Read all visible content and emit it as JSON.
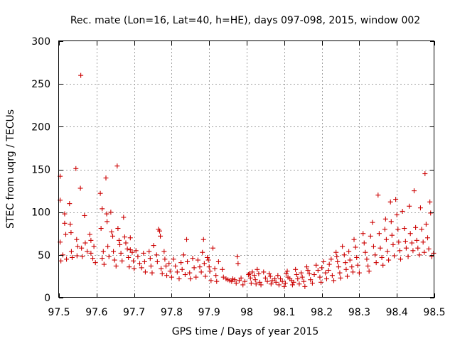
{
  "chart_data": {
    "type": "scatter",
    "title": "Rec. mate (Lon=16, Lat=40, h=HE), days 097-098, 2015, window 002",
    "xlabel": "GPS time / Days of year 2015",
    "ylabel": "STEC from uqrg / TECUs",
    "xlim": [
      97.5,
      98.5
    ],
    "ylim": [
      0,
      300
    ],
    "xticks": [
      97.5,
      97.6,
      97.7,
      97.8,
      97.9,
      98.0,
      98.1,
      98.2,
      98.3,
      98.4,
      98.5
    ],
    "xtick_labels": [
      "97.5",
      "97.6",
      "97.7",
      "97.8",
      "97.9",
      "98",
      "98.1",
      "98.2",
      "98.3",
      "98.4",
      "98.5"
    ],
    "yticks": [
      0,
      50,
      100,
      150,
      200,
      250,
      300
    ],
    "ytick_labels": [
      "0",
      "50",
      "100",
      "150",
      "200",
      "250",
      "300"
    ],
    "grid": true,
    "series": [
      {
        "name": "STEC",
        "color": "#cc0000",
        "marker": "plus",
        "points": [
          [
            97.503,
            142
          ],
          [
            97.503,
            114
          ],
          [
            97.503,
            65
          ],
          [
            97.505,
            43
          ],
          [
            97.51,
            50
          ],
          [
            97.515,
            98
          ],
          [
            97.515,
            87
          ],
          [
            97.518,
            74
          ],
          [
            97.52,
            45
          ],
          [
            97.528,
            110
          ],
          [
            97.53,
            86
          ],
          [
            97.532,
            76
          ],
          [
            97.533,
            54
          ],
          [
            97.535,
            47
          ],
          [
            97.545,
            151
          ],
          [
            97.547,
            68
          ],
          [
            97.55,
            60
          ],
          [
            97.548,
            49
          ],
          [
            97.558,
            260
          ],
          [
            97.557,
            128
          ],
          [
            97.56,
            58
          ],
          [
            97.562,
            48
          ],
          [
            97.568,
            96
          ],
          [
            97.57,
            64
          ],
          [
            97.575,
            54
          ],
          [
            97.582,
            74
          ],
          [
            97.585,
            67
          ],
          [
            97.585,
            52
          ],
          [
            97.59,
            46
          ],
          [
            97.593,
            60
          ],
          [
            97.597,
            41
          ],
          [
            97.61,
            122
          ],
          [
            97.615,
            104
          ],
          [
            97.612,
            81
          ],
          [
            97.618,
            54
          ],
          [
            97.615,
            46
          ],
          [
            97.62,
            39
          ],
          [
            97.625,
            140
          ],
          [
            97.627,
            98
          ],
          [
            97.628,
            89
          ],
          [
            97.63,
            60
          ],
          [
            97.633,
            48
          ],
          [
            97.638,
            100
          ],
          [
            97.64,
            77
          ],
          [
            97.643,
            72
          ],
          [
            97.645,
            54
          ],
          [
            97.648,
            44
          ],
          [
            97.652,
            37
          ],
          [
            97.655,
            154
          ],
          [
            97.657,
            81
          ],
          [
            97.66,
            67
          ],
          [
            97.662,
            62
          ],
          [
            97.665,
            52
          ],
          [
            97.668,
            43
          ],
          [
            97.672,
            94
          ],
          [
            97.675,
            71
          ],
          [
            97.678,
            64
          ],
          [
            97.682,
            57
          ],
          [
            97.685,
            47
          ],
          [
            97.687,
            36
          ],
          [
            97.69,
            70
          ],
          [
            97.69,
            56
          ],
          [
            97.695,
            53
          ],
          [
            97.698,
            43
          ],
          [
            97.7,
            34
          ],
          [
            97.705,
            55
          ],
          [
            97.71,
            48
          ],
          [
            97.715,
            40
          ],
          [
            97.72,
            35
          ],
          [
            97.725,
            52
          ],
          [
            97.728,
            42
          ],
          [
            97.73,
            30
          ],
          [
            97.74,
            54
          ],
          [
            97.743,
            46
          ],
          [
            97.745,
            37
          ],
          [
            97.748,
            29
          ],
          [
            97.752,
            61
          ],
          [
            97.76,
            50
          ],
          [
            97.762,
            42
          ],
          [
            97.765,
            80
          ],
          [
            97.768,
            78
          ],
          [
            97.77,
            72
          ],
          [
            97.772,
            34
          ],
          [
            97.775,
            28
          ],
          [
            97.78,
            54
          ],
          [
            97.782,
            45
          ],
          [
            97.785,
            37
          ],
          [
            97.787,
            26
          ],
          [
            97.793,
            40
          ],
          [
            97.796,
            31
          ],
          [
            97.8,
            24
          ],
          [
            97.805,
            45
          ],
          [
            97.81,
            37
          ],
          [
            97.815,
            30
          ],
          [
            97.82,
            22
          ],
          [
            97.825,
            41
          ],
          [
            97.828,
            33
          ],
          [
            97.832,
            50
          ],
          [
            97.836,
            27
          ],
          [
            97.84,
            68
          ],
          [
            97.842,
            42
          ],
          [
            97.848,
            29
          ],
          [
            97.85,
            22
          ],
          [
            97.856,
            46
          ],
          [
            97.86,
            35
          ],
          [
            97.865,
            24
          ],
          [
            97.87,
            44
          ],
          [
            97.875,
            36
          ],
          [
            97.879,
            30
          ],
          [
            97.882,
            53
          ],
          [
            97.885,
            68
          ],
          [
            97.887,
            40
          ],
          [
            97.89,
            25
          ],
          [
            97.895,
            47
          ],
          [
            97.898,
            44
          ],
          [
            97.9,
            36
          ],
          [
            97.902,
            31
          ],
          [
            97.905,
            20
          ],
          [
            97.91,
            58
          ],
          [
            97.915,
            34
          ],
          [
            97.918,
            26
          ],
          [
            97.92,
            19
          ],
          [
            97.925,
            42
          ],
          [
            97.935,
            33
          ],
          [
            97.938,
            24
          ],
          [
            97.945,
            22
          ],
          [
            97.95,
            21
          ],
          [
            97.955,
            20
          ],
          [
            97.96,
            19
          ],
          [
            97.963,
            22
          ],
          [
            97.968,
            21
          ],
          [
            97.972,
            17
          ],
          [
            97.975,
            48
          ],
          [
            97.977,
            40
          ],
          [
            97.98,
            20
          ],
          [
            97.985,
            23
          ],
          [
            97.99,
            15
          ],
          [
            97.995,
            19
          ],
          [
            98.005,
            27
          ],
          [
            98.007,
            28
          ],
          [
            98.01,
            23
          ],
          [
            98.012,
            17
          ],
          [
            98.015,
            30
          ],
          [
            98.02,
            26
          ],
          [
            98.023,
            21
          ],
          [
            98.025,
            16
          ],
          [
            98.028,
            33
          ],
          [
            98.032,
            28
          ],
          [
            98.035,
            18
          ],
          [
            98.038,
            15
          ],
          [
            98.045,
            30
          ],
          [
            98.05,
            23
          ],
          [
            98.055,
            19
          ],
          [
            98.06,
            28
          ],
          [
            98.063,
            25
          ],
          [
            98.065,
            16
          ],
          [
            98.068,
            20
          ],
          [
            98.075,
            22
          ],
          [
            98.078,
            18
          ],
          [
            98.083,
            26
          ],
          [
            98.086,
            15
          ],
          [
            98.09,
            22
          ],
          [
            98.095,
            19
          ],
          [
            98.1,
            13
          ],
          [
            98.103,
            17
          ],
          [
            98.105,
            28
          ],
          [
            98.108,
            31
          ],
          [
            98.11,
            24
          ],
          [
            98.115,
            22
          ],
          [
            98.12,
            20
          ],
          [
            98.122,
            15
          ],
          [
            98.125,
            18
          ],
          [
            98.13,
            33
          ],
          [
            98.133,
            27
          ],
          [
            98.136,
            22
          ],
          [
            98.14,
            16
          ],
          [
            98.145,
            29
          ],
          [
            98.148,
            24
          ],
          [
            98.152,
            19
          ],
          [
            98.155,
            13
          ],
          [
            98.16,
            36
          ],
          [
            98.163,
            32
          ],
          [
            98.167,
            28
          ],
          [
            98.17,
            21
          ],
          [
            98.175,
            17
          ],
          [
            98.18,
            27
          ],
          [
            98.185,
            38
          ],
          [
            98.19,
            32
          ],
          [
            98.195,
            24
          ],
          [
            98.198,
            18
          ],
          [
            98.2,
            35
          ],
          [
            98.205,
            42
          ],
          [
            98.21,
            29
          ],
          [
            98.213,
            22
          ],
          [
            98.218,
            32
          ],
          [
            98.22,
            39
          ],
          [
            98.225,
            45
          ],
          [
            98.228,
            26
          ],
          [
            98.232,
            20
          ],
          [
            98.238,
            53
          ],
          [
            98.24,
            48
          ],
          [
            98.242,
            42
          ],
          [
            98.245,
            36
          ],
          [
            98.248,
            29
          ],
          [
            98.25,
            23
          ],
          [
            98.255,
            60
          ],
          [
            98.26,
            50
          ],
          [
            98.263,
            41
          ],
          [
            98.265,
            33
          ],
          [
            98.268,
            25
          ],
          [
            98.272,
            54
          ],
          [
            98.275,
            44
          ],
          [
            98.28,
            36
          ],
          [
            98.283,
            30
          ],
          [
            98.286,
            68
          ],
          [
            98.29,
            59
          ],
          [
            98.293,
            47
          ],
          [
            98.296,
            38
          ],
          [
            98.3,
            29
          ],
          [
            98.31,
            75
          ],
          [
            98.313,
            64
          ],
          [
            98.316,
            53
          ],
          [
            98.32,
            45
          ],
          [
            98.323,
            37
          ],
          [
            98.326,
            31
          ],
          [
            98.33,
            72
          ],
          [
            98.335,
            88
          ],
          [
            98.338,
            60
          ],
          [
            98.342,
            50
          ],
          [
            98.345,
            41
          ],
          [
            98.35,
            120
          ],
          [
            98.353,
            75
          ],
          [
            98.356,
            58
          ],
          [
            98.36,
            47
          ],
          [
            98.363,
            38
          ],
          [
            98.368,
            80
          ],
          [
            98.37,
            92
          ],
          [
            98.372,
            68
          ],
          [
            98.375,
            54
          ],
          [
            98.378,
            44
          ],
          [
            98.383,
            112
          ],
          [
            98.385,
            89
          ],
          [
            98.387,
            73
          ],
          [
            98.39,
            62
          ],
          [
            98.393,
            49
          ],
          [
            98.397,
            115
          ],
          [
            98.4,
            97
          ],
          [
            98.403,
            80
          ],
          [
            98.405,
            65
          ],
          [
            98.408,
            55
          ],
          [
            98.41,
            45
          ],
          [
            98.415,
            101
          ],
          [
            98.42,
            81
          ],
          [
            98.423,
            66
          ],
          [
            98.425,
            58
          ],
          [
            98.43,
            48
          ],
          [
            98.433,
            107
          ],
          [
            98.436,
            75
          ],
          [
            98.44,
            64
          ],
          [
            98.443,
            55
          ],
          [
            98.446,
            125
          ],
          [
            98.45,
            82
          ],
          [
            98.453,
            67
          ],
          [
            98.456,
            58
          ],
          [
            98.46,
            50
          ],
          [
            98.463,
            105
          ],
          [
            98.466,
            80
          ],
          [
            98.47,
            65
          ],
          [
            98.473,
            53
          ],
          [
            98.475,
            145
          ],
          [
            98.478,
            86
          ],
          [
            98.482,
            70
          ],
          [
            98.485,
            57
          ],
          [
            98.488,
            112
          ],
          [
            98.49,
            99
          ],
          [
            98.493,
            48
          ],
          [
            98.498,
            52
          ]
        ]
      }
    ]
  }
}
